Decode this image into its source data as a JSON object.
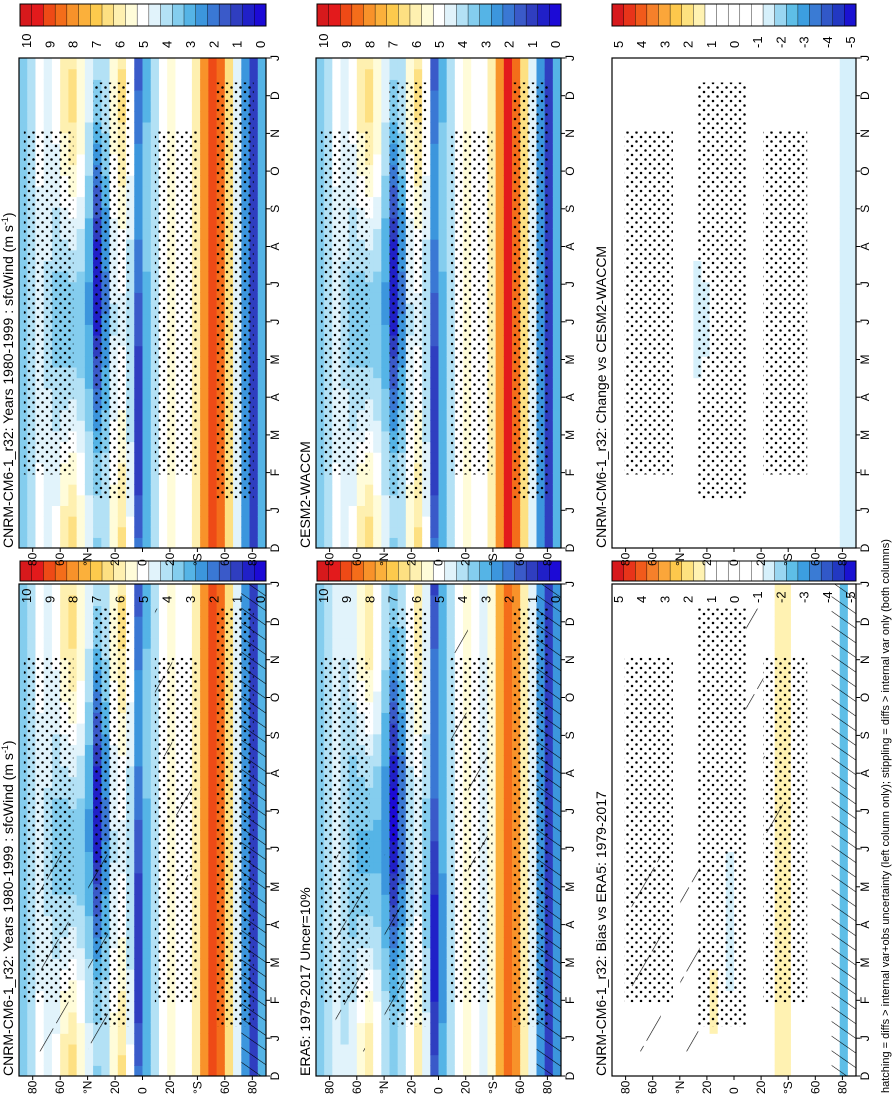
{
  "figure": {
    "orientation": "rotated-90-ccw",
    "footnote": "hatching = diffs > internal var+obs uncertainty (left column only); stippling = diffs > internal var only (both columns)"
  },
  "chart_data": [
    {
      "type": "heatmap",
      "id": "p1",
      "title": "CNRM-CM6-1_r32: Years 1980-1999 : sfcWind (m s",
      "title_sup": "-1",
      "title_tail": ")",
      "x_ticks": [
        "D",
        "J",
        "F",
        "M",
        "A",
        "M",
        "J",
        "J",
        "A",
        "S",
        "O",
        "N",
        "D",
        "J"
      ],
      "y_ticks": [
        "80",
        "60",
        "°N",
        "20",
        "0",
        "20",
        "°S",
        "60",
        "80"
      ],
      "colorbar": [
        "10",
        "9",
        "8",
        "7",
        "6",
        "5",
        "4",
        "3",
        "2",
        "1",
        "0"
      ],
      "scale": "full",
      "hatching": true,
      "stippling": true
    },
    {
      "type": "heatmap",
      "id": "p2",
      "title": "ERA5: 1979-2017 Uncer=10%",
      "x_ticks": [
        "D",
        "J",
        "F",
        "M",
        "A",
        "M",
        "J",
        "J",
        "A",
        "S",
        "O",
        "N",
        "D",
        "J"
      ],
      "y_ticks": [
        "80",
        "60",
        "°N",
        "20",
        "0",
        "20",
        "°S",
        "60",
        "80"
      ],
      "colorbar": [
        "10",
        "9",
        "8",
        "7",
        "6",
        "5",
        "4",
        "3",
        "2",
        "1",
        "0"
      ],
      "scale": "full",
      "hatching": true,
      "stippling": true
    },
    {
      "type": "heatmap",
      "id": "p3",
      "title": "CNRM-CM6-1_r32: Bias vs ERA5: 1979-2017",
      "x_ticks": [
        "D",
        "J",
        "F",
        "M",
        "A",
        "M",
        "J",
        "J",
        "A",
        "S",
        "O",
        "N",
        "D",
        "J"
      ],
      "y_ticks": [
        "80",
        "60",
        "°N",
        "20",
        "0",
        "20",
        "°S",
        "60",
        "80"
      ],
      "colorbar": [
        "5",
        "4",
        "3",
        "2",
        "1",
        "0",
        "-1",
        "-2",
        "-3",
        "-4",
        "-5"
      ],
      "scale": "diff",
      "hatching": true,
      "stippling": true
    },
    {
      "type": "heatmap",
      "id": "p4",
      "title": "CNRM-CM6-1_r32: Years 1980-1999 : sfcWind (m s",
      "title_sup": "-1",
      "title_tail": ")",
      "x_ticks": [
        "D",
        "J",
        "F",
        "M",
        "A",
        "M",
        "J",
        "J",
        "A",
        "S",
        "O",
        "N",
        "D",
        "J"
      ],
      "y_ticks": [
        "80",
        "60",
        "°N",
        "20",
        "0",
        "20",
        "°S",
        "60",
        "80"
      ],
      "colorbar": [
        "10",
        "9",
        "8",
        "7",
        "6",
        "5",
        "4",
        "3",
        "2",
        "1",
        "0"
      ],
      "scale": "full",
      "hatching": false,
      "stippling": true
    },
    {
      "type": "heatmap",
      "id": "p5",
      "title": "CESM2-WACCM",
      "x_ticks": [
        "D",
        "J",
        "F",
        "M",
        "A",
        "M",
        "J",
        "J",
        "A",
        "S",
        "O",
        "N",
        "D",
        "J"
      ],
      "y_ticks": [
        "80",
        "60",
        "°N",
        "20",
        "0",
        "20",
        "°S",
        "60",
        "80"
      ],
      "colorbar": [
        "10",
        "9",
        "8",
        "7",
        "6",
        "5",
        "4",
        "3",
        "2",
        "1",
        "0"
      ],
      "scale": "full",
      "hatching": false,
      "stippling": true
    },
    {
      "type": "heatmap",
      "id": "p6",
      "title": "CNRM-CM6-1_r32: Change vs CESM2-WACCM",
      "x_ticks": [
        "D",
        "J",
        "F",
        "M",
        "A",
        "M",
        "J",
        "J",
        "A",
        "S",
        "O",
        "N",
        "D",
        "J"
      ],
      "y_ticks": [
        "80",
        "60",
        "°N",
        "20",
        "0",
        "20",
        "°S",
        "60",
        "80"
      ],
      "colorbar": [
        "5",
        "4",
        "3",
        "2",
        "1",
        "0",
        "-1",
        "-2",
        "-3",
        "-4",
        "-5"
      ],
      "scale": "diff",
      "hatching": false,
      "stippling": true
    }
  ],
  "colors": {
    "full_scale": [
      "#d7191c",
      "#e31a1c",
      "#ee4a16",
      "#f46d1a",
      "#f8922a",
      "#fbb03b",
      "#fdca4d",
      "#fde082",
      "#fef0b0",
      "#fffcd9",
      "#ffffff",
      "#e1f3fb",
      "#b3e1f5",
      "#84cdee",
      "#55b4e6",
      "#3c96dd",
      "#3a78d4",
      "#3a5ac9",
      "#2f3ec0",
      "#2020c8",
      "#1c0ad6"
    ],
    "diff_scale": [
      "#d7191c",
      "#e8341a",
      "#f15a1b",
      "#f6802a",
      "#fba63a",
      "#fdc84c",
      "#fee27f",
      "#fff2b2",
      "#ffffff",
      "#ffffff",
      "#ffffff",
      "#ffffff",
      "#ffffff",
      "#d6f0fb",
      "#99d6f1",
      "#5ebee7",
      "#3c9ee0",
      "#3a7bd4",
      "#3158c8",
      "#2238c2",
      "#1a12d2"
    ]
  }
}
